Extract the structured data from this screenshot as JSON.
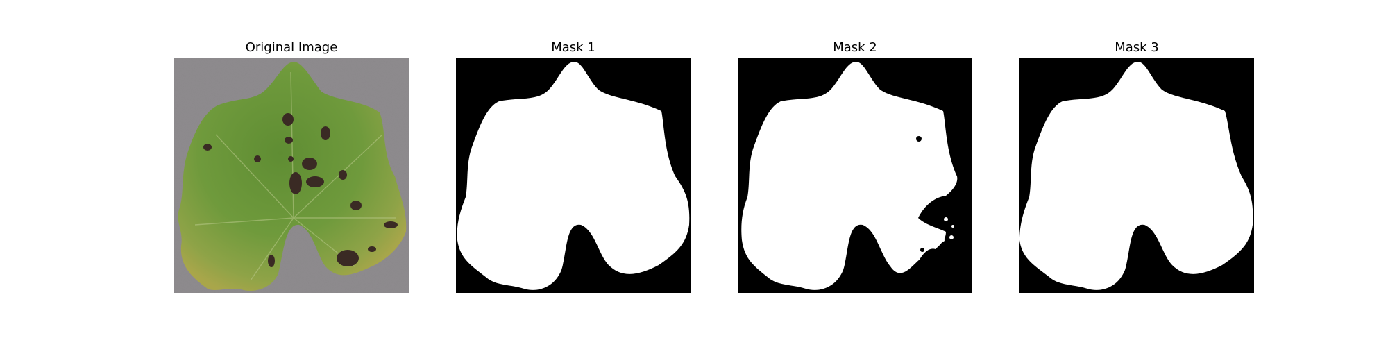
{
  "figure": {
    "panels": [
      {
        "title": "Original Image",
        "kind": "photo",
        "description_icon": "leaf-photo"
      },
      {
        "title": "Mask 1",
        "kind": "mask"
      },
      {
        "title": "Mask 2",
        "kind": "mask"
      },
      {
        "title": "Mask 3",
        "kind": "mask"
      }
    ]
  },
  "colors": {
    "background": "#ffffff",
    "mask_foreground": "#ffffff",
    "mask_background": "#000000",
    "leaf_green": "#6f9a3c",
    "leaf_dark": "#3e5f24",
    "leaf_yellow": "#a9a64a",
    "spot_brown": "#3a2a24",
    "photo_bg": "#8f8c8f"
  }
}
